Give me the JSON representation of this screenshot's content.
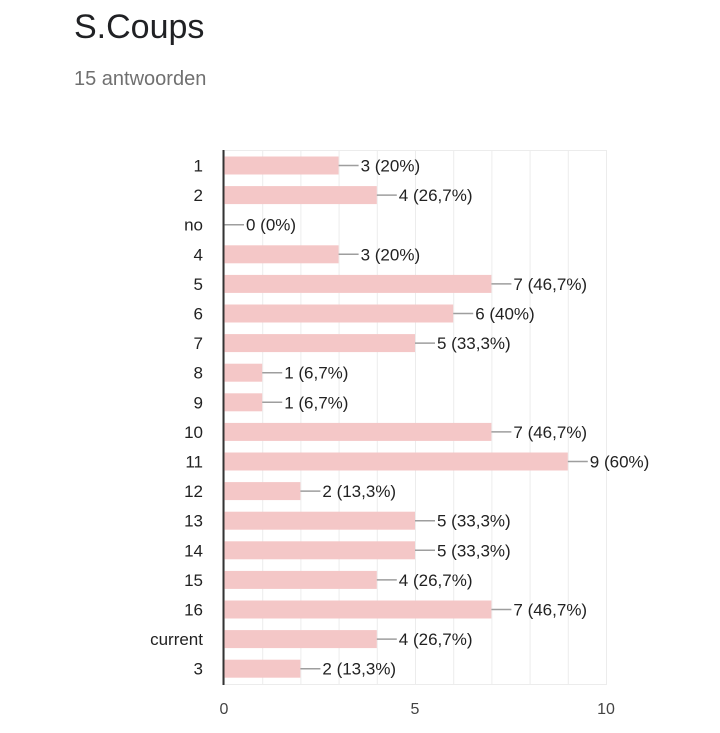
{
  "header": {
    "title": "S.Coups",
    "subtitle": "15 antwoorden"
  },
  "colors": {
    "bar": "#f4c7c7",
    "connector": "#9e9e9e",
    "grid": "#ececec",
    "axis": "#333333"
  },
  "chart_data": {
    "type": "bar",
    "orientation": "horizontal",
    "categories": [
      "1",
      "2",
      "no",
      "4",
      "5",
      "6",
      "7",
      "8",
      "9",
      "10",
      "11",
      "12",
      "13",
      "14",
      "15",
      "16",
      "current",
      "3"
    ],
    "values": [
      3,
      4,
      0,
      3,
      7,
      6,
      5,
      1,
      1,
      7,
      9,
      2,
      5,
      5,
      4,
      7,
      4,
      2
    ],
    "data_labels": [
      "3 (20%)",
      "4 (26,7%)",
      "0 (0%)",
      "3 (20%)",
      "7 (46,7%)",
      "6 (40%)",
      "5 (33,3%)",
      "1 (6,7%)",
      "1 (6,7%)",
      "7 (46,7%)",
      "9 (60%)",
      "2 (13,3%)",
      "5 (33,3%)",
      "5 (33,3%)",
      "4 (26,7%)",
      "7 (46,7%)",
      "4 (26,7%)",
      "2 (13,3%)"
    ],
    "xlim": [
      0,
      10
    ],
    "x_ticks": [
      0,
      5,
      10
    ],
    "grid": true
  }
}
